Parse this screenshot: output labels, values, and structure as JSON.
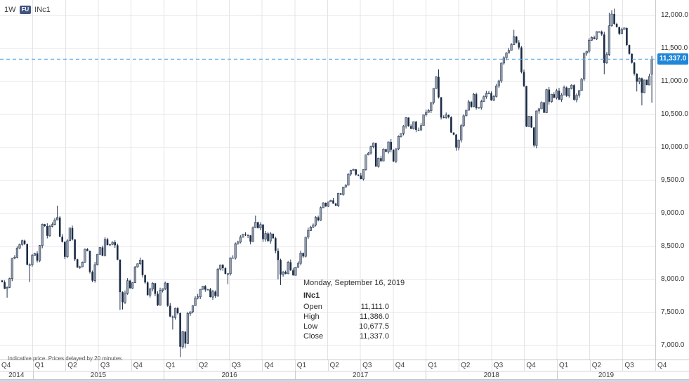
{
  "toolbar": {
    "interval_label": "1W",
    "instrument_type_badge": "FU",
    "symbol": "INc1"
  },
  "disclaimer": "Indicative price. Prices delayed by 20 minutes",
  "tooltip": {
    "date": "Monday, September 16, 2019",
    "symbol": "INc1",
    "rows": [
      {
        "label": "Open",
        "value": "11,111.0"
      },
      {
        "label": "High",
        "value": "11,386.0"
      },
      {
        "label": "Low",
        "value": "10,677.5"
      },
      {
        "label": "Close",
        "value": "11,337.0"
      }
    ]
  },
  "colors": {
    "candle_up": "#98a1ae",
    "candle_up_border": "#2a3b58",
    "candle_down": "#1a2a44",
    "wick": "#233450",
    "grid": "#e4e4e8",
    "dashed_line": "#58a9e8",
    "badge_bg": "#1f86d8",
    "scrollbar": "#ccd7e2"
  },
  "chart_data": {
    "type": "candlestick",
    "title": "INc1 weekly continuation futures",
    "interval": "1W",
    "xlabel": "",
    "ylabel": "",
    "x_range": {
      "start": "2014 Q4",
      "end": "2019 Q4",
      "weeks": 260
    },
    "ylim": [
      6800,
      12150
    ],
    "grid": true,
    "y_ticks": [
      {
        "label": "12,000.0",
        "value": 12000
      },
      {
        "label": "11,500.0",
        "value": 11500
      },
      {
        "label": "11,000.0",
        "value": 11000
      },
      {
        "label": "10,500.0",
        "value": 10500
      },
      {
        "label": "10,000.0",
        "value": 10000
      },
      {
        "label": "9,500.0",
        "value": 9500
      },
      {
        "label": "9,000.0",
        "value": 9000
      },
      {
        "label": "8,500.0",
        "value": 8500
      },
      {
        "label": "8,000.0",
        "value": 8000
      },
      {
        "label": "7,500.0",
        "value": 7500
      },
      {
        "label": "7,000.0",
        "value": 7000
      }
    ],
    "time_scale": {
      "quarter_labels": [
        "Q4",
        "Q1",
        "Q2",
        "Q3",
        "Q4",
        "Q1",
        "Q2",
        "Q3",
        "Q4",
        "Q1",
        "Q2",
        "Q3",
        "Q4",
        "Q1",
        "Q2",
        "Q3",
        "Q4",
        "Q1",
        "Q2",
        "Q3",
        "Q4"
      ],
      "years": [
        {
          "label": "2014",
          "from_tick": 0,
          "to_tick": 1
        },
        {
          "label": "2015",
          "from_tick": 1,
          "to_tick": 5
        },
        {
          "label": "2016",
          "from_tick": 5,
          "to_tick": 9
        },
        {
          "label": "2017",
          "from_tick": 9,
          "to_tick": 13
        },
        {
          "label": "2018",
          "from_tick": 13,
          "to_tick": 17
        },
        {
          "label": "2019",
          "from_tick": 17,
          "to_tick": 20
        }
      ]
    },
    "last_price": {
      "label": "11,337.0",
      "value": 11337
    },
    "last_candle": {
      "open": 11111,
      "high": 11386,
      "low": 10677.5,
      "close": 11337
    },
    "first_open": 7985,
    "closes": [
      7960,
      7860,
      7880,
      8014,
      8322,
      8337,
      8477,
      8530,
      8588,
      8538,
      8224,
      8225,
      8365,
      8395,
      8285,
      8514,
      8836,
      8808,
      8661,
      8805,
      8833,
      8902,
      8938,
      8648,
      8570,
      8342,
      8586,
      8780,
      8606,
      8305,
      8182,
      8191,
      8262,
      8459,
      8434,
      8115,
      7983,
      8225,
      8381,
      8485,
      8361,
      8610,
      8521,
      8533,
      8564,
      8518,
      8300,
      7809,
      7655,
      7789,
      7982,
      7869,
      7950,
      8190,
      8238,
      8295,
      8066,
      7954,
      7762,
      7857,
      7943,
      7782,
      7610,
      7834,
      7861,
      7946,
      7601,
      7438,
      7422,
      7564,
      7489,
      6980,
      7210,
      7029,
      7485,
      7510,
      7604,
      7717,
      7738,
      7850,
      7899,
      7847,
      7849,
      7733,
      7815,
      7750,
      8157,
      8221,
      8170,
      8086,
      8088,
      8328,
      8323,
      8541,
      8566,
      8639,
      8683,
      8672,
      8667,
      8572,
      8786,
      8867,
      8780,
      8832,
      8611,
      8697,
      8583,
      8693,
      8626,
      8434,
      8296,
      8075,
      8114,
      8087,
      8262,
      8140,
      8062,
      8186,
      8244,
      8401,
      8349,
      8641,
      8741,
      8794,
      8822,
      8940,
      8897,
      9087,
      9160,
      9108,
      9174,
      9198,
      9151,
      9119,
      9304,
      9285,
      9401,
      9428,
      9595,
      9654,
      9668,
      9588,
      9575,
      9521,
      9665,
      9886,
      9915,
      10014,
      10066,
      9711,
      9837,
      9795,
      9974,
      9935,
      10085,
      9964,
      9789,
      9980,
      10167,
      10210,
      10323,
      10452,
      10322,
      10283,
      10389,
      10266,
      10265,
      10333,
      10493,
      10531,
      10558,
      10681,
      10895,
      11070,
      10760,
      10455,
      10452,
      10491,
      10458,
      10226,
      10195,
      9998,
      10114,
      10332,
      10480,
      10564,
      10692,
      10618,
      10806,
      10596,
      10605,
      10696,
      10768,
      10818,
      10821,
      10714,
      10773,
      10933,
      11010,
      11278,
      11361,
      11430,
      11471,
      11557,
      11680,
      11589,
      11515,
      11143,
      10930,
      10316,
      10473,
      10303,
      10030,
      10553,
      10585,
      10682,
      10527,
      10877,
      10694,
      10806,
      10754,
      10860,
      10727,
      10795,
      10907,
      10781,
      10894,
      10944,
      10724,
      10792,
      10863,
      11035,
      11427,
      11457,
      11624,
      11666,
      11643,
      11754,
      11754,
      11712,
      11279,
      11407,
      11844,
      12021,
      11871,
      11824,
      11724,
      11789,
      11811,
      11552,
      11419,
      11284,
      11118,
      10997,
      11048,
      10829,
      11023,
      10946,
      11076,
      11337
    ],
    "overrides": {
      "2": {
        "low": 7724
      },
      "11": {
        "low": 7961
      },
      "22": {
        "high": 9119
      },
      "47": {
        "low": 7539
      },
      "48": {
        "low": 7546
      },
      "68": {
        "low": 7241
      },
      "71": {
        "low": 6825
      },
      "73": {
        "low": 6961
      },
      "90": {
        "low": 7927
      },
      "101": {
        "high": 8968
      },
      "110": {
        "low": 8002
      },
      "111": {
        "low": 7916
      },
      "174": {
        "high": 11185
      },
      "181": {
        "low": 9951
      },
      "204": {
        "high": 11782
      },
      "212": {
        "low": 10004
      },
      "240": {
        "low": 11108
      },
      "242": {
        "high": 12041
      },
      "243": {
        "high": 12080
      },
      "244": {
        "high": 12103
      },
      "253": {
        "low": 10848
      },
      "255": {
        "low": 10637
      },
      "259": {
        "open": 11111,
        "high": 11386,
        "low": 10677.5,
        "close": 11337
      }
    }
  }
}
